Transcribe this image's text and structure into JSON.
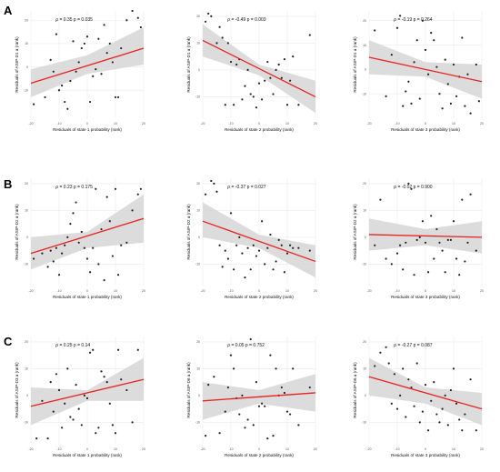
{
  "figure": {
    "row_labels": [
      "A",
      "B",
      "C"
    ]
  },
  "style": {
    "point_color": "#222222",
    "line_color": "#e8211f",
    "band_color": "#d6d6d6",
    "grid_color": "#ebebeb"
  },
  "chart_data": [
    {
      "type": "scatter",
      "row": 0,
      "col": 0,
      "xlabel": "Residuals of state 1 probability (rank)",
      "ylabel": "Residuals of ASIP-D1 a (rank)",
      "annotation": "ρ = 0.35  p = 0.035",
      "xlim": [
        -20,
        20
      ],
      "ylim": [
        -22,
        24
      ],
      "xticks": [
        -20,
        -10,
        0,
        10,
        20
      ],
      "yticks": [
        -10,
        0,
        10,
        20
      ],
      "x": [
        -19,
        -15,
        -13,
        -12,
        -11,
        -10,
        -9,
        -8,
        -7,
        -6,
        -5,
        -4,
        -3,
        -2,
        -1,
        0,
        1,
        2,
        3,
        4,
        5,
        6,
        7,
        8,
        9,
        10,
        11,
        12,
        14,
        16,
        18,
        19
      ],
      "y": [
        -16,
        -13,
        3,
        -2,
        14,
        -10,
        -8,
        -15,
        -18,
        -6,
        11,
        -2,
        2,
        8,
        10,
        13,
        -15,
        -4,
        -1,
        12,
        -3,
        18,
        6,
        10,
        2,
        -13,
        -13,
        8,
        20,
        24,
        21,
        17
      ],
      "fit": [
        [
          -20,
          -7
        ],
        [
          20,
          8
        ]
      ],
      "band_upper": [
        [
          -20,
          -1
        ],
        [
          0,
          5
        ],
        [
          20,
          17
        ]
      ],
      "band_lower": [
        [
          -20,
          -13
        ],
        [
          0,
          -3
        ],
        [
          20,
          1
        ]
      ]
    },
    {
      "type": "scatter",
      "row": 0,
      "col": 1,
      "xlabel": "Residuals of state 2 probability (rank)",
      "ylabel": "Residuals of ASIP-D1 a (rank)",
      "annotation": "ρ = -0.49  p = 0.003",
      "xlim": [
        -20,
        20
      ],
      "ylim": [
        -18,
        22
      ],
      "xticks": [
        -20,
        -10,
        0,
        10,
        20
      ],
      "yticks": [
        -10,
        0,
        10,
        20
      ],
      "x": [
        -19,
        -18,
        -17,
        -15,
        -14,
        -13,
        -12,
        -11,
        -10,
        -9,
        -8,
        -7,
        -6,
        -5,
        -4,
        -3,
        -2,
        -1,
        0,
        1,
        2,
        3,
        4,
        5,
        6,
        7,
        8,
        9,
        10,
        11,
        12,
        14,
        18
      ],
      "y": [
        18,
        21,
        20,
        10,
        16,
        12,
        -13,
        10,
        3,
        -13,
        2,
        4,
        -11,
        -6,
        0,
        -9,
        -10,
        -14,
        -5,
        -11,
        -4,
        3,
        -3,
        -9,
        0,
        2,
        -3,
        4,
        -13,
        -4,
        5,
        -13,
        13
      ],
      "fit": [
        [
          -20,
          11
        ],
        [
          20,
          -10
        ]
      ],
      "band_upper": [
        [
          -20,
          17
        ],
        [
          0,
          2
        ],
        [
          20,
          -4
        ]
      ],
      "band_lower": [
        [
          -20,
          5
        ],
        [
          0,
          -2
        ],
        [
          20,
          -16
        ]
      ]
    },
    {
      "type": "scatter",
      "row": 0,
      "col": 2,
      "xlabel": "Residuals of state 3 probability (rank)",
      "ylabel": "Residuals of ASIP-D1 a (rank)",
      "annotation": "ρ = -0.19  p = 0.264",
      "xlim": [
        -20,
        20
      ],
      "ylim": [
        -20,
        24
      ],
      "xticks": [
        -20,
        -10,
        0,
        10,
        20
      ],
      "yticks": [
        -10,
        0,
        10,
        20
      ],
      "x": [
        -18,
        -14,
        -12,
        -10,
        -9,
        -8,
        -7,
        -6,
        -5,
        -4,
        -3,
        -2,
        -1,
        0,
        1,
        2,
        3,
        4,
        5,
        6,
        7,
        8,
        9,
        10,
        11,
        12,
        13,
        14,
        15,
        16,
        18,
        19
      ],
      "y": [
        16,
        -11,
        6,
        17,
        22,
        -15,
        -9,
        -5,
        -14,
        3,
        12,
        -12,
        20,
        8,
        -2,
        15,
        12,
        1,
        -10,
        -16,
        4,
        -6,
        -14,
        2,
        -11,
        -3,
        13,
        -15,
        -2,
        -18,
        2,
        -13
      ],
      "fit": [
        [
          -20,
          5
        ],
        [
          20,
          -5
        ]
      ],
      "band_upper": [
        [
          -20,
          12
        ],
        [
          0,
          3
        ],
        [
          20,
          2
        ]
      ],
      "band_lower": [
        [
          -20,
          -2
        ],
        [
          0,
          -3
        ],
        [
          20,
          -12
        ]
      ]
    },
    {
      "type": "scatter",
      "row": 1,
      "col": 0,
      "xlabel": "Residuals of state 1 probability (rank)",
      "ylabel": "Residuals of ASIP-D2 a (rank)",
      "annotation": "ρ = 0.23  p = 0.175",
      "xlim": [
        -20,
        20
      ],
      "ylim": [
        -18,
        22
      ],
      "xticks": [
        -20,
        -10,
        0,
        10,
        20
      ],
      "yticks": [
        -10,
        0,
        10,
        20
      ],
      "x": [
        -19,
        -16,
        -14,
        -13,
        -12,
        -11,
        -10,
        -9,
        -8,
        -7,
        -6,
        -5,
        -4,
        -3,
        -2,
        -1,
        0,
        1,
        2,
        3,
        4,
        5,
        6,
        7,
        8,
        9,
        10,
        11,
        12,
        14,
        16,
        18,
        19
      ],
      "y": [
        -8,
        -6,
        -11,
        -5,
        -9,
        -4,
        -14,
        -6,
        -3,
        0,
        5,
        9,
        13,
        -2,
        2,
        -4,
        -8,
        -13,
        -4,
        18,
        -10,
        3,
        -16,
        15,
        6,
        -7,
        18,
        -14,
        -3,
        -2,
        10,
        16,
        18
      ],
      "fit": [
        [
          -20,
          -6
        ],
        [
          20,
          7
        ]
      ],
      "band_upper": [
        [
          -20,
          0
        ],
        [
          0,
          2
        ],
        [
          20,
          16
        ]
      ],
      "band_lower": [
        [
          -20,
          -12
        ],
        [
          0,
          -4
        ],
        [
          20,
          -2
        ]
      ]
    },
    {
      "type": "scatter",
      "row": 1,
      "col": 1,
      "xlabel": "Residuals of state 2 probability (rank)",
      "ylabel": "Residuals of ASIP-D2 a (rank)",
      "annotation": "ρ = -0.37  p = 0.027",
      "xlim": [
        -20,
        20
      ],
      "ylim": [
        -18,
        22
      ],
      "xticks": [
        -20,
        -10,
        0,
        10,
        20
      ],
      "yticks": [
        -10,
        0,
        10,
        20
      ],
      "x": [
        -19,
        -17,
        -16,
        -15,
        -14,
        -13,
        -12,
        -11,
        -10,
        -9,
        -8,
        -7,
        -6,
        -5,
        -4,
        -3,
        -2,
        -1,
        0,
        1,
        2,
        3,
        4,
        5,
        6,
        7,
        8,
        9,
        10,
        11,
        12,
        14,
        18
      ],
      "y": [
        16,
        21,
        20,
        17,
        -3,
        -11,
        -5,
        -8,
        9,
        -12,
        -3,
        0,
        -6,
        -15,
        -4,
        -12,
        -3,
        -7,
        -5,
        6,
        -10,
        -4,
        1,
        -12,
        -9,
        -1,
        -3,
        -13,
        -6,
        -3,
        -4,
        -4,
        -5
      ],
      "fit": [
        [
          -20,
          6
        ],
        [
          20,
          -9
        ]
      ],
      "band_upper": [
        [
          -20,
          13
        ],
        [
          0,
          1
        ],
        [
          20,
          -3
        ]
      ],
      "band_lower": [
        [
          -20,
          0
        ],
        [
          0,
          -4
        ],
        [
          20,
          -15
        ]
      ]
    },
    {
      "type": "scatter",
      "row": 1,
      "col": 2,
      "xlabel": "Residuals of state 3 probability (rank)",
      "ylabel": "Residuals of ASIP-D2 a (rank)",
      "annotation": "ρ = -0.02  p = 0.900",
      "xlim": [
        -20,
        20
      ],
      "ylim": [
        -18,
        22
      ],
      "xticks": [
        -20,
        -10,
        0,
        10,
        20
      ],
      "yticks": [
        -10,
        0,
        10,
        20
      ],
      "x": [
        -18,
        -16,
        -14,
        -12,
        -10,
        -9,
        -8,
        -7,
        -6,
        -5,
        -4,
        -3,
        -2,
        -1,
        0,
        1,
        2,
        3,
        4,
        5,
        6,
        7,
        8,
        9,
        10,
        11,
        12,
        13,
        14,
        15,
        16,
        18
      ],
      "y": [
        -3,
        14,
        -8,
        -10,
        -6,
        -3,
        -12,
        -2,
        20,
        18,
        -14,
        -1,
        0,
        6,
        -2,
        -13,
        8,
        -8,
        3,
        -2,
        -5,
        -13,
        -1,
        -1,
        6,
        -8,
        -14,
        14,
        -9,
        -2,
        16,
        -5
      ],
      "fit": [
        [
          -20,
          1
        ],
        [
          20,
          0
        ]
      ],
      "band_upper": [
        [
          -20,
          7
        ],
        [
          0,
          3
        ],
        [
          20,
          6
        ]
      ],
      "band_lower": [
        [
          -20,
          -5
        ],
        [
          0,
          -3
        ],
        [
          20,
          -6
        ]
      ]
    },
    {
      "type": "scatter",
      "row": 2,
      "col": 0,
      "xlabel": "Residuals of state 1 probability (rank)",
      "ylabel": "Residuals of ASIP-D3 a (rank)",
      "annotation": "ρ = 0.25  p = 0.14",
      "xlim": [
        -20,
        20
      ],
      "ylim": [
        -18,
        22
      ],
      "xticks": [
        -20,
        -10,
        0,
        10,
        20
      ],
      "yticks": [
        -10,
        0,
        10,
        20
      ],
      "x": [
        -18,
        -16,
        -14,
        -13,
        -12,
        -11,
        -10,
        -9,
        -8,
        -7,
        -6,
        -5,
        -4,
        -3,
        -2,
        -1,
        0,
        1,
        2,
        3,
        4,
        5,
        6,
        7,
        8,
        9,
        10,
        11,
        12,
        14,
        16,
        18
      ],
      "y": [
        -16,
        -2,
        -16,
        5,
        -6,
        8,
        2,
        -12,
        -3,
        10,
        -8,
        -9,
        4,
        -5,
        -11,
        0,
        -1,
        16,
        17,
        -14,
        -12,
        9,
        7,
        5,
        -3,
        -11,
        -14,
        17,
        6,
        2,
        -10,
        17
      ],
      "fit": [
        [
          -20,
          -4
        ],
        [
          20,
          6
        ]
      ],
      "band_upper": [
        [
          -20,
          3
        ],
        [
          0,
          2
        ],
        [
          20,
          14
        ]
      ],
      "band_lower": [
        [
          -20,
          -11
        ],
        [
          0,
          -2
        ],
        [
          20,
          -2
        ]
      ]
    },
    {
      "type": "scatter",
      "row": 2,
      "col": 1,
      "xlabel": "Residuals of state 2 probability (rank)",
      "ylabel": "Residuals of ASIP-D6 a (rank)",
      "annotation": "ρ = 0.05  p = 0.752",
      "xlim": [
        -20,
        20
      ],
      "ylim": [
        -18,
        22
      ],
      "xticks": [
        -20,
        -10,
        0,
        10,
        20
      ],
      "yticks": [
        -10,
        0,
        10,
        20
      ],
      "x": [
        -19,
        -18,
        -16,
        -14,
        -12,
        -11,
        -10,
        -9,
        -8,
        -7,
        -6,
        -5,
        -4,
        -3,
        -2,
        -1,
        0,
        1,
        2,
        3,
        4,
        5,
        6,
        7,
        8,
        9,
        10,
        11,
        12,
        14,
        18
      ],
      "y": [
        -15,
        4,
        7,
        -14,
        -6,
        3,
        15,
        10,
        -1,
        -7,
        0,
        -12,
        -9,
        21,
        -11,
        5,
        -4,
        -3,
        -4,
        -16,
        15,
        -15,
        10,
        0,
        3,
        1,
        -6,
        -7,
        10,
        -11,
        3
      ],
      "fit": [
        [
          -20,
          -2
        ],
        [
          20,
          1
        ]
      ],
      "band_upper": [
        [
          -20,
          5
        ],
        [
          0,
          2
        ],
        [
          20,
          8
        ]
      ],
      "band_lower": [
        [
          -20,
          -9
        ],
        [
          0,
          -3
        ],
        [
          20,
          -6
        ]
      ]
    },
    {
      "type": "scatter",
      "row": 2,
      "col": 2,
      "xlabel": "Residuals of state 3 probability (rank)",
      "ylabel": "Residuals of ASIP-D6 a (rank)",
      "annotation": "ρ = -0.27  p = 0.087",
      "xlim": [
        -20,
        20
      ],
      "ylim": [
        -18,
        22
      ],
      "xticks": [
        -20,
        -10,
        0,
        10,
        20
      ],
      "yticks": [
        -10,
        0,
        10,
        20
      ],
      "x": [
        -18,
        -16,
        -14,
        -13,
        -12,
        -11,
        -10,
        -9,
        -8,
        -7,
        -6,
        -5,
        -4,
        -3,
        -2,
        -1,
        0,
        1,
        2,
        3,
        4,
        5,
        6,
        7,
        8,
        9,
        10,
        11,
        12,
        13,
        14,
        16,
        18
      ],
      "y": [
        11,
        16,
        18,
        12,
        -3,
        8,
        -5,
        0,
        10,
        -8,
        6,
        3,
        -4,
        12,
        -10,
        -6,
        4,
        -13,
        -2,
        5,
        -7,
        -10,
        -5,
        0,
        -11,
        2,
        10,
        -3,
        -9,
        -13,
        -7,
        6,
        -13
      ],
      "fit": [
        [
          -20,
          7
        ],
        [
          20,
          -5
        ]
      ],
      "band_upper": [
        [
          -20,
          14
        ],
        [
          0,
          3
        ],
        [
          20,
          1
        ]
      ],
      "band_lower": [
        [
          -20,
          0
        ],
        [
          0,
          -3
        ],
        [
          20,
          -11
        ]
      ]
    }
  ]
}
